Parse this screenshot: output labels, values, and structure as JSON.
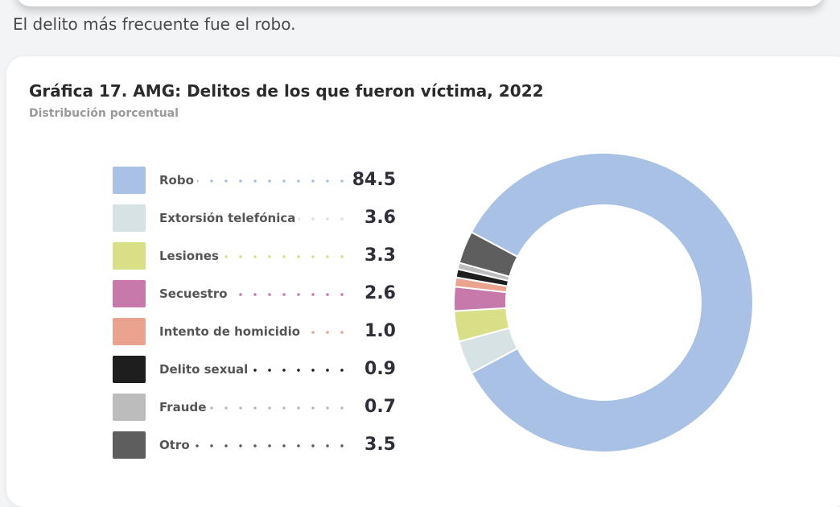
{
  "intro_text": "El delito más frecuente fue el robo.",
  "chart_data": {
    "type": "pie",
    "title": "Gráfica 17. AMG: Delitos de los que fueron víctima, 2022",
    "subtitle": "Distribución porcentual",
    "legend_position": "left",
    "categories": [
      "Robo",
      "Extorsión telefónica",
      "Lesiones",
      "Secuestro",
      "Intento de homicidio",
      "Delito sexual",
      "Fraude",
      "Otro"
    ],
    "values": [
      84.5,
      3.6,
      3.3,
      2.6,
      1.0,
      0.9,
      0.7,
      3.5
    ],
    "value_labels": [
      "84.5",
      "3.6",
      "3.3",
      "2.6",
      "1.0",
      "0.9",
      "0.7",
      "3.5"
    ],
    "colors": [
      "#a9c1e5",
      "#d6e2e4",
      "#d9df87",
      "#c879ac",
      "#eaa38f",
      "#1e1e1e",
      "#bcbcbc",
      "#5e5e5e"
    ]
  }
}
